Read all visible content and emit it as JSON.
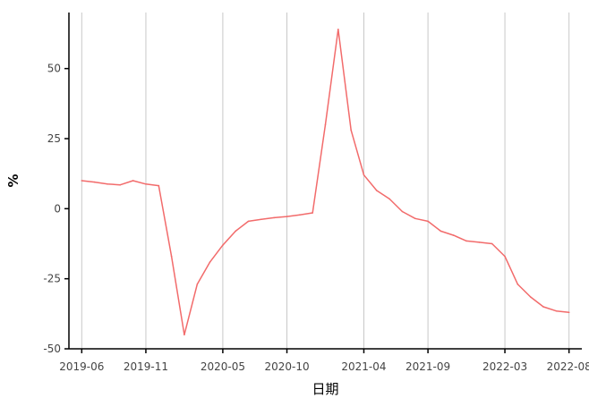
{
  "chart_data": {
    "type": "line",
    "title": "",
    "xlabel": "日期",
    "ylabel": "%",
    "ylim": [
      -50,
      70
    ],
    "y_ticks": [
      -50,
      -25,
      0,
      25,
      50
    ],
    "y_tick_labels": [
      "-50",
      "-25",
      "0",
      "25",
      "50"
    ],
    "x_ticks": [
      "2019-06",
      "2019-11",
      "2020-05",
      "2020-10",
      "2021-04",
      "2021-09",
      "2022-03",
      "2022-08"
    ],
    "xlim": [
      "2019-05",
      "2022-09"
    ],
    "grid": "vertical",
    "legend": "none",
    "colors": {
      "line": "#f26b6b",
      "grid": "#c8c8c8",
      "axis": "#000000"
    },
    "series": [
      {
        "points": [
          {
            "x": "2019-06",
            "y": 10
          },
          {
            "x": "2019-07",
            "y": 9.5
          },
          {
            "x": "2019-08",
            "y": 8.8
          },
          {
            "x": "2019-09",
            "y": 8.5
          },
          {
            "x": "2019-10",
            "y": 10
          },
          {
            "x": "2019-11",
            "y": 8.8
          },
          {
            "x": "2019-12",
            "y": 8.2
          },
          {
            "x": "2020-01",
            "y": -17
          },
          {
            "x": "2020-02",
            "y": -45
          },
          {
            "x": "2020-03",
            "y": -27
          },
          {
            "x": "2020-04",
            "y": -19
          },
          {
            "x": "2020-05",
            "y": -13
          },
          {
            "x": "2020-06",
            "y": -8
          },
          {
            "x": "2020-07",
            "y": -4.5
          },
          {
            "x": "2020-08",
            "y": -3.8
          },
          {
            "x": "2020-09",
            "y": -3.2
          },
          {
            "x": "2020-10",
            "y": -2.8
          },
          {
            "x": "2020-11",
            "y": -2.2
          },
          {
            "x": "2020-12",
            "y": -1.5
          },
          {
            "x": "2021-01",
            "y": 30
          },
          {
            "x": "2021-02",
            "y": 64
          },
          {
            "x": "2021-03",
            "y": 28
          },
          {
            "x": "2021-04",
            "y": 12
          },
          {
            "x": "2021-05",
            "y": 6.5
          },
          {
            "x": "2021-06",
            "y": 3.5
          },
          {
            "x": "2021-07",
            "y": -1
          },
          {
            "x": "2021-08",
            "y": -3.5
          },
          {
            "x": "2021-09",
            "y": -4.5
          },
          {
            "x": "2021-10",
            "y": -8
          },
          {
            "x": "2021-11",
            "y": -9.5
          },
          {
            "x": "2021-12",
            "y": -11.5
          },
          {
            "x": "2022-01",
            "y": -12
          },
          {
            "x": "2022-02",
            "y": -12.5
          },
          {
            "x": "2022-03",
            "y": -17
          },
          {
            "x": "2022-04",
            "y": -27
          },
          {
            "x": "2022-05",
            "y": -31.5
          },
          {
            "x": "2022-06",
            "y": -35
          },
          {
            "x": "2022-07",
            "y": -36.5
          },
          {
            "x": "2022-08",
            "y": -37
          }
        ]
      }
    ]
  }
}
